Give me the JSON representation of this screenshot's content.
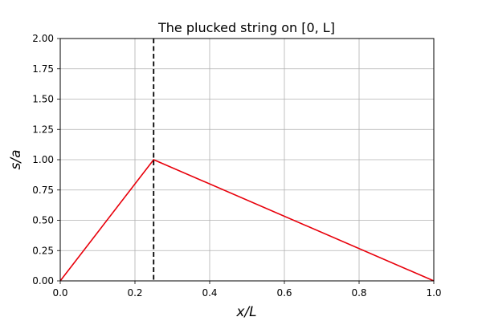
{
  "chart_data": {
    "type": "line",
    "title": "The plucked string on [0, L]",
    "xlabel": "x/L",
    "ylabel": "s/a",
    "xlim": [
      0.0,
      1.0
    ],
    "ylim": [
      0.0,
      2.0
    ],
    "grid": true,
    "xticks": [
      0.0,
      0.2,
      0.4,
      0.6,
      0.8,
      1.0
    ],
    "xtick_labels": [
      "0.0",
      "0.2",
      "0.4",
      "0.6",
      "0.8",
      "1.0"
    ],
    "yticks": [
      0.0,
      0.25,
      0.5,
      0.75,
      1.0,
      1.25,
      1.5,
      1.75,
      2.0
    ],
    "ytick_labels": [
      "0.00",
      "0.25",
      "0.50",
      "0.75",
      "1.00",
      "1.25",
      "1.50",
      "1.75",
      "2.00"
    ],
    "series": [
      {
        "color": "#e8000b",
        "style": "solid",
        "x": [
          0.0,
          0.25,
          1.0
        ],
        "y": [
          0.0,
          1.0,
          0.0
        ]
      }
    ],
    "vlines": [
      {
        "x": 0.25,
        "color": "#000000",
        "style": "dashed"
      }
    ]
  }
}
